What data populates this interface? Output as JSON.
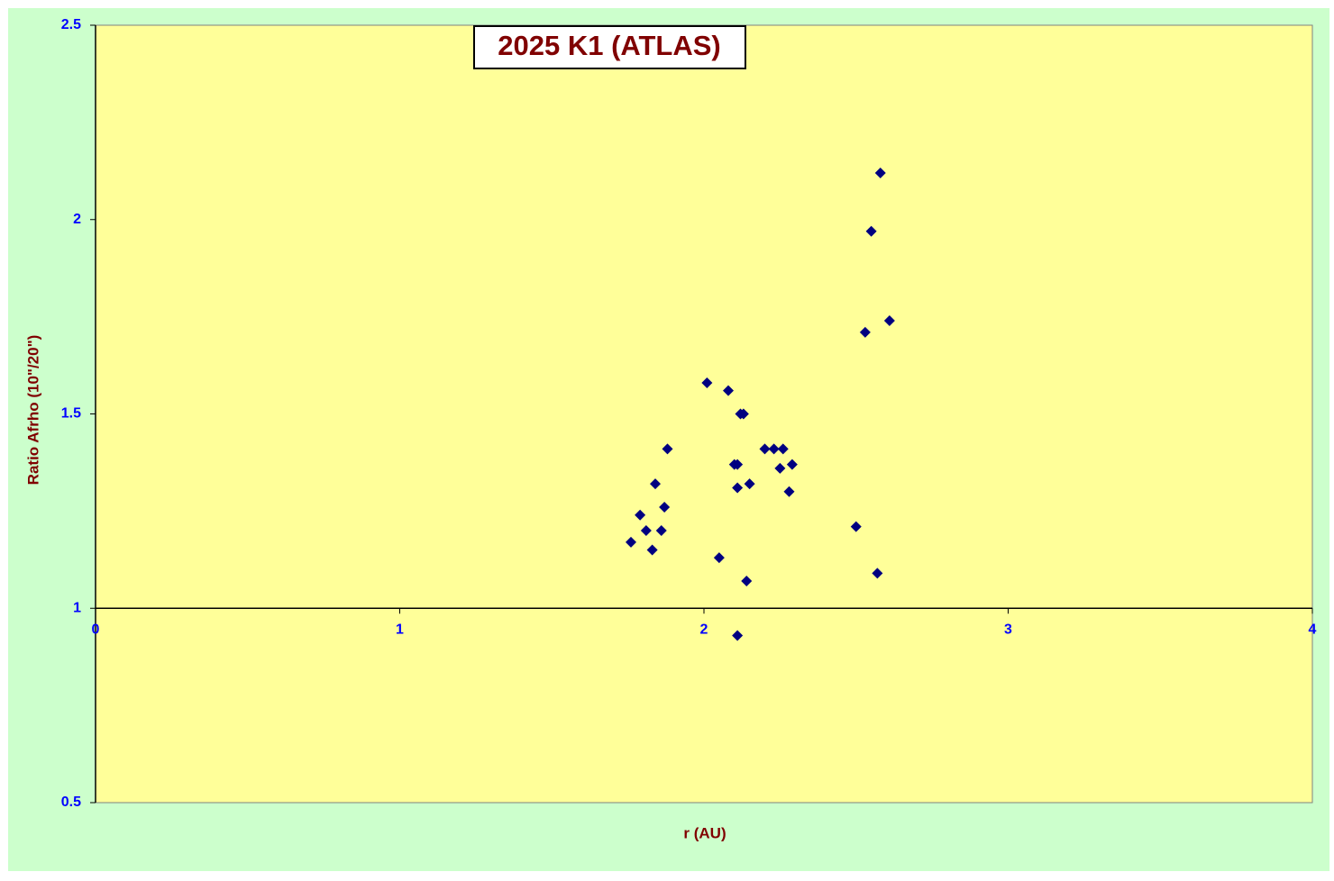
{
  "chart_data": {
    "type": "scatter",
    "title": "2025 K1 (ATLAS)",
    "x_label": "r (AU)",
    "y_label": "Ratio Afrho (10\"/20\")",
    "xlim": [
      0,
      4
    ],
    "xticks": [
      0,
      1,
      2,
      3,
      4
    ],
    "ylim": [
      0.5,
      2.5
    ],
    "yticks": [
      0.5,
      1,
      1.5,
      2,
      2.5
    ],
    "x_axis_at": 1,
    "series": [
      {
        "color": "#000080",
        "x": [
          1.76,
          1.79,
          1.81,
          1.83,
          1.84,
          1.86,
          1.87,
          1.88,
          2.01,
          2.05,
          2.08,
          2.1,
          2.11,
          2.11,
          2.11,
          2.12,
          2.13,
          2.14,
          2.15,
          2.2,
          2.23,
          2.25,
          2.26,
          2.28,
          2.29,
          2.5,
          2.53,
          2.55,
          2.57,
          2.58,
          2.61
        ],
        "values": [
          1.17,
          1.24,
          1.2,
          1.15,
          1.32,
          1.2,
          1.26,
          1.41,
          1.58,
          1.13,
          1.56,
          1.37,
          1.37,
          1.31,
          0.93,
          1.5,
          1.5,
          1.07,
          1.32,
          1.41,
          1.41,
          1.36,
          1.41,
          1.3,
          1.37,
          1.21,
          1.71,
          1.97,
          1.09,
          2.12,
          1.74
        ]
      }
    ]
  }
}
